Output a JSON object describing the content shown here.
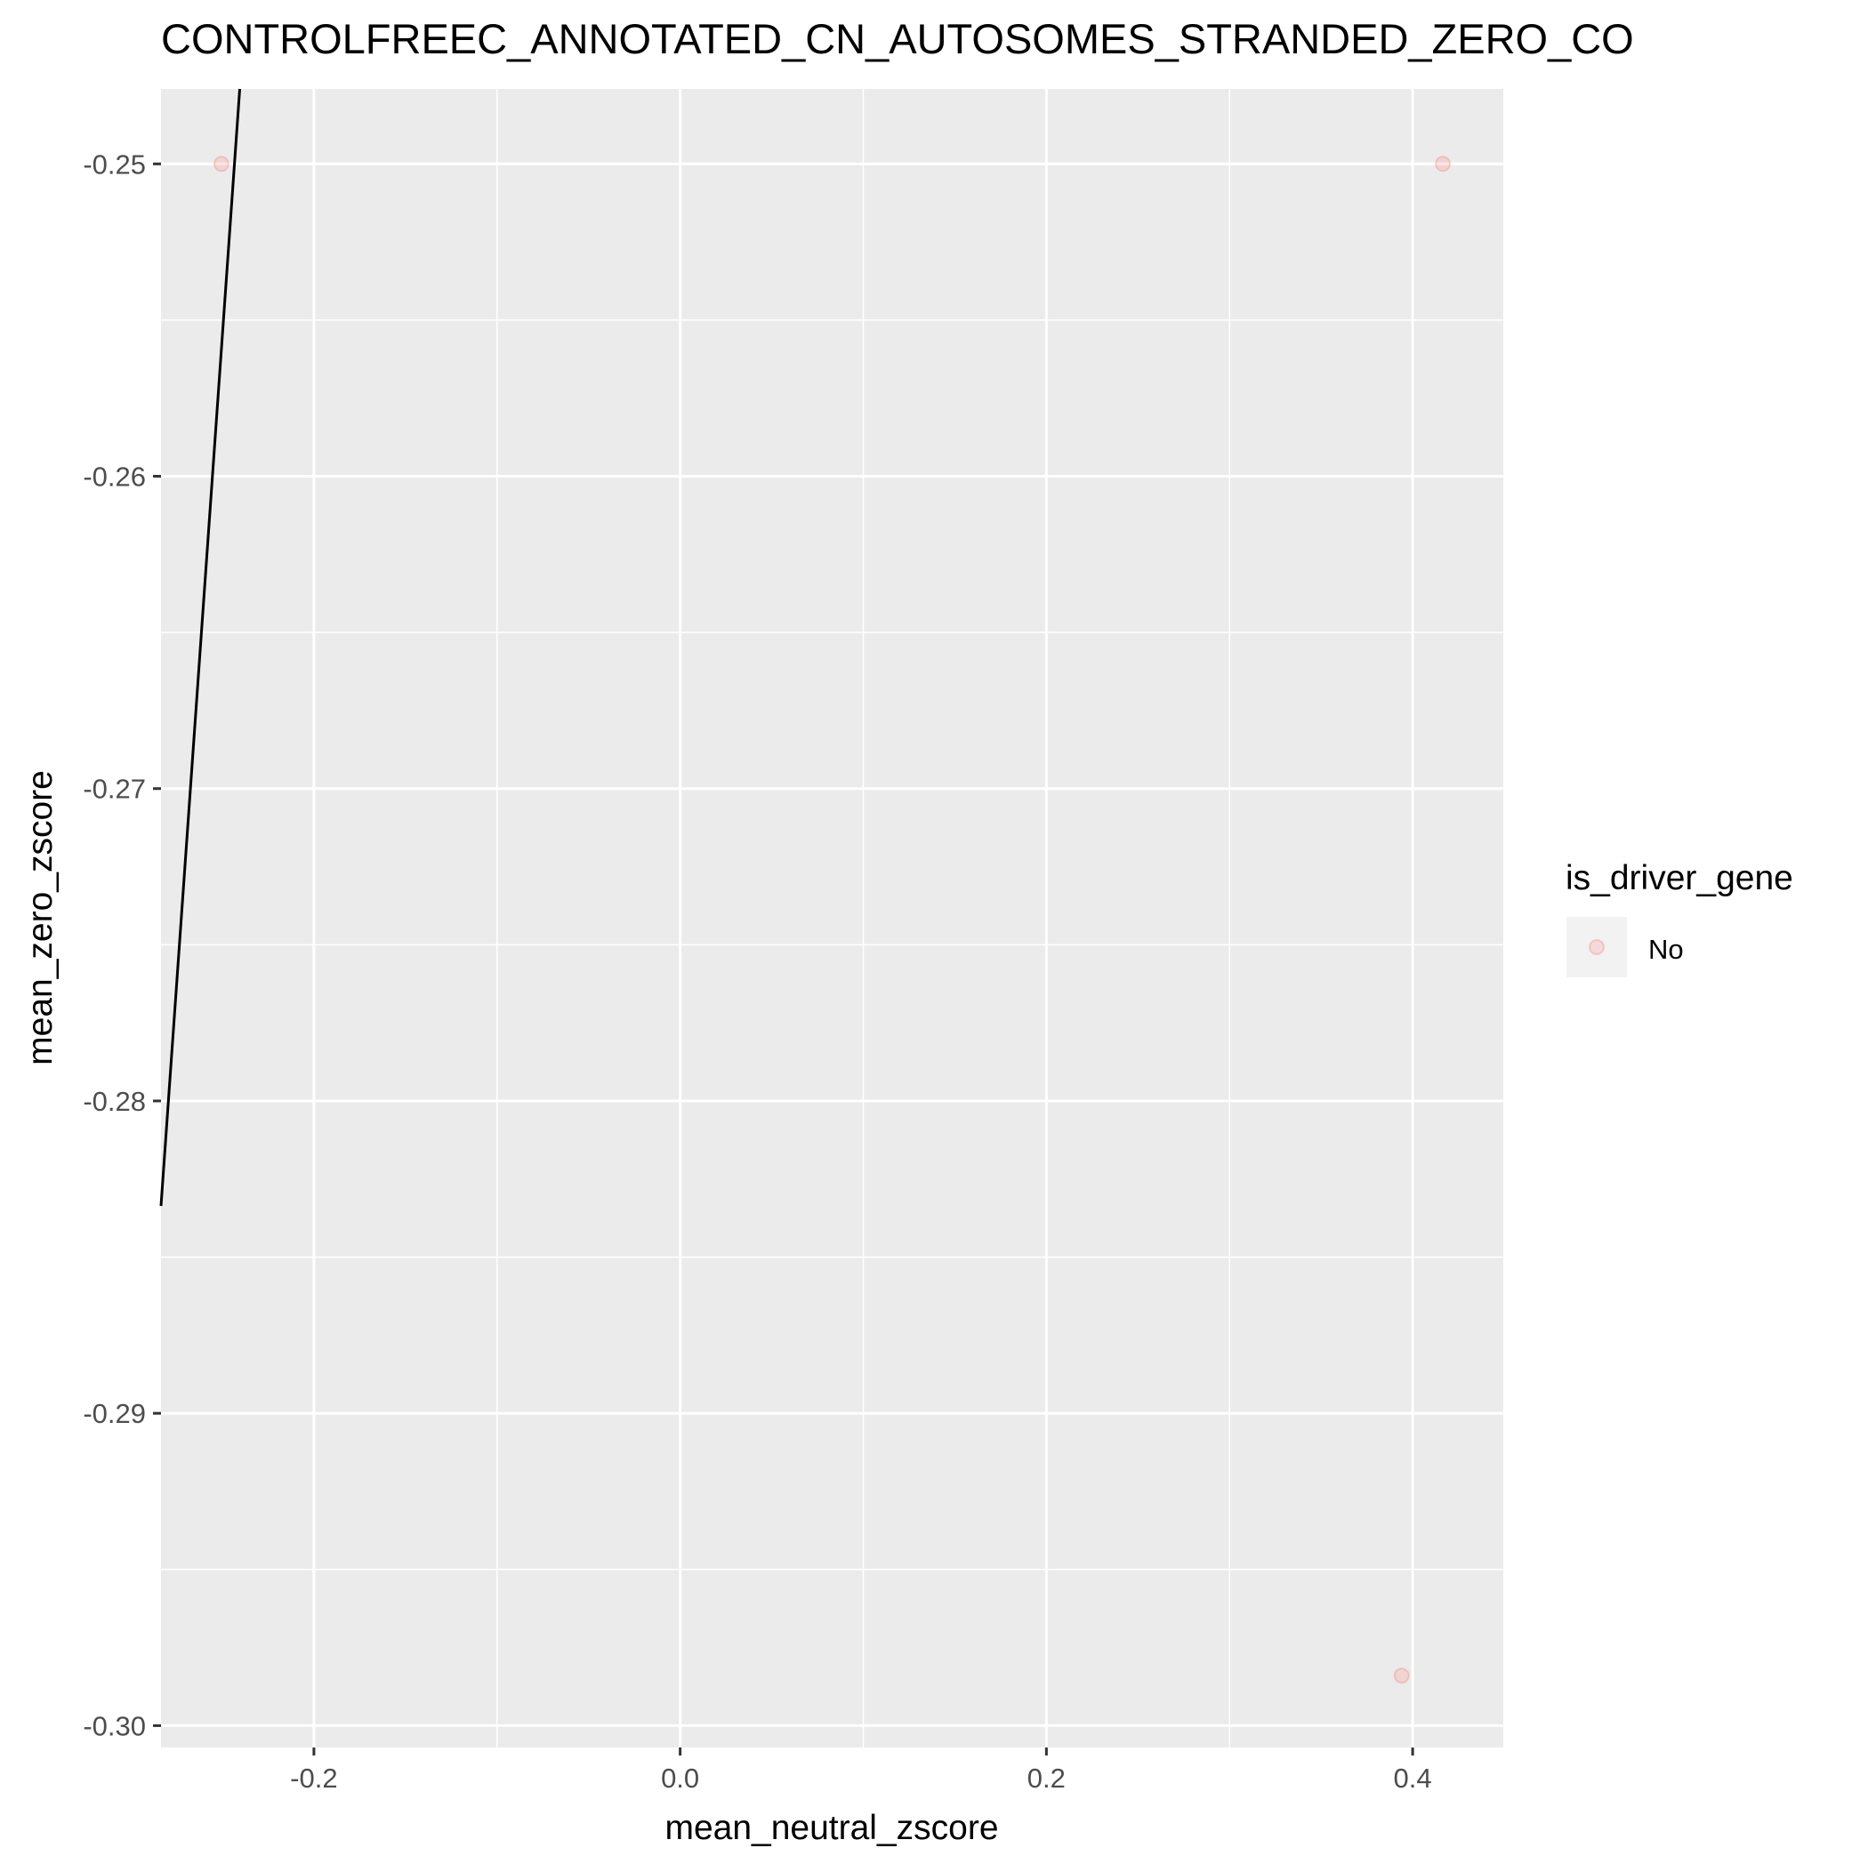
{
  "chart_data": {
    "type": "scatter",
    "title": "CONTROLFREEC_ANNOTATED_CN_AUTOSOMES_STRANDED_ZERO_CO",
    "xlabel": "mean_neutral_zscore",
    "ylabel": "mean_zero_zscore",
    "xlim": [
      -0.2835,
      0.4495
    ],
    "ylim": [
      -0.3007,
      -0.2476
    ],
    "x_ticks": [
      -0.2,
      0.0,
      0.2,
      0.4
    ],
    "x_tick_labels": [
      "-0.2",
      "0.0",
      "0.2",
      "0.4"
    ],
    "y_ticks": [
      -0.25,
      -0.26,
      -0.27,
      -0.28,
      -0.29,
      -0.3
    ],
    "y_tick_labels": [
      "-0.25",
      "-0.26",
      "-0.27",
      "-0.28",
      "-0.29",
      "-0.30"
    ],
    "grid": true,
    "legend": {
      "title": "is_driver_gene",
      "position": "right",
      "entries": [
        {
          "label": "No",
          "color": "#F8766D"
        }
      ]
    },
    "series": [
      {
        "color": "#F8766D",
        "points": [
          {
            "x": -0.2505,
            "y": -0.25
          },
          {
            "x": 0.4165,
            "y": -0.25
          },
          {
            "x": 0.394,
            "y": -0.2984
          }
        ]
      }
    ],
    "fit_line": {
      "color": "#000000",
      "points": [
        {
          "x": -0.2835,
          "y": -0.28336
        },
        {
          "x": -0.2405,
          "y": -0.2476
        }
      ]
    },
    "colors": {
      "panel_background": "#EBEBEB",
      "grid_line": "#FFFFFF",
      "axis_text": "#4D4D4D",
      "title_text": "#000000"
    }
  }
}
